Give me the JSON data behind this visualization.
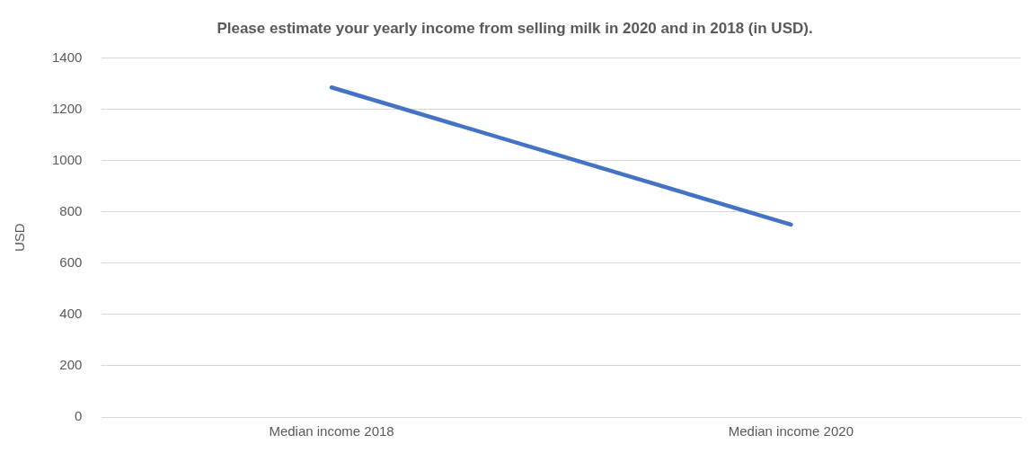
{
  "chart_data": {
    "type": "line",
    "title": "Please estimate your yearly income from selling milk in 2020 and in 2018 (in USD).",
    "ylabel": "USD",
    "categories": [
      "Median income 2018",
      "Median income 2020"
    ],
    "series": [
      {
        "color": "#4472c4",
        "values": [
          1285,
          750
        ]
      }
    ],
    "ylim": [
      0,
      1400
    ],
    "yticks": [
      0,
      200,
      400,
      600,
      800,
      1000,
      1200,
      1400
    ],
    "grid": "y",
    "legend": false,
    "marker": "none",
    "line_style": "solid"
  }
}
